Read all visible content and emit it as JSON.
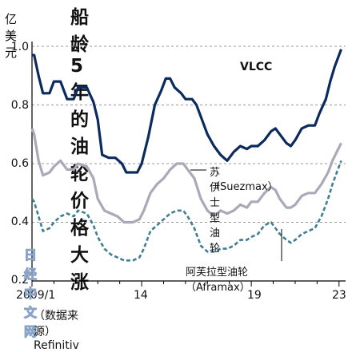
{
  "header": {
    "unit": "亿美元",
    "title": "船龄5年的油轮价格大涨"
  },
  "source": "（数据来源）Refinitiv",
  "watermark": "日经中文网",
  "colors": {
    "vlcc": "#0b2a5e",
    "suezmax": "#a9a9b8",
    "aframax": "#3f7f94"
  },
  "chart_data": {
    "type": "line",
    "title": "船龄5年的油轮价格大涨",
    "ylabel": "亿美元",
    "ylim": [
      0.2,
      1.0
    ],
    "xlim": [
      2009.0,
      2023.3
    ],
    "y_ticks": [
      "1.0",
      "0.8",
      "0.6",
      "0.4",
      "0.2"
    ],
    "x_ticks": [
      {
        "label": "2009/1",
        "x": 2009.0
      },
      {
        "label": "14",
        "x": 2014.0
      },
      {
        "label": "19",
        "x": 2019.0
      },
      {
        "label": "23",
        "x": 2023.0
      }
    ],
    "series": [
      {
        "name": "VLCC",
        "style": "solid",
        "points": [
          [
            2009.0,
            0.97
          ],
          [
            2009.1,
            0.97
          ],
          [
            2009.3,
            0.9
          ],
          [
            2009.5,
            0.84
          ],
          [
            2009.8,
            0.84
          ],
          [
            2010.0,
            0.88
          ],
          [
            2010.3,
            0.88
          ],
          [
            2010.6,
            0.82
          ],
          [
            2010.9,
            0.82
          ],
          [
            2011.1,
            0.86
          ],
          [
            2011.5,
            0.86
          ],
          [
            2011.8,
            0.81
          ],
          [
            2012.0,
            0.75
          ],
          [
            2012.2,
            0.63
          ],
          [
            2012.5,
            0.62
          ],
          [
            2012.8,
            0.62
          ],
          [
            2013.1,
            0.6
          ],
          [
            2013.3,
            0.57
          ],
          [
            2013.8,
            0.57
          ],
          [
            2014.0,
            0.6
          ],
          [
            2014.3,
            0.69
          ],
          [
            2014.6,
            0.8
          ],
          [
            2014.9,
            0.85
          ],
          [
            2015.1,
            0.89
          ],
          [
            2015.3,
            0.89
          ],
          [
            2015.5,
            0.86
          ],
          [
            2015.8,
            0.84
          ],
          [
            2016.0,
            0.82
          ],
          [
            2016.3,
            0.82
          ],
          [
            2016.5,
            0.8
          ],
          [
            2016.8,
            0.74
          ],
          [
            2017.0,
            0.7
          ],
          [
            2017.3,
            0.66
          ],
          [
            2017.6,
            0.63
          ],
          [
            2017.9,
            0.61
          ],
          [
            2018.2,
            0.64
          ],
          [
            2018.5,
            0.66
          ],
          [
            2018.8,
            0.65
          ],
          [
            2019.0,
            0.66
          ],
          [
            2019.3,
            0.66
          ],
          [
            2019.6,
            0.68
          ],
          [
            2019.9,
            0.71
          ],
          [
            2020.1,
            0.72
          ],
          [
            2020.3,
            0.7
          ],
          [
            2020.6,
            0.67
          ],
          [
            2020.8,
            0.66
          ],
          [
            2021.0,
            0.68
          ],
          [
            2021.3,
            0.72
          ],
          [
            2021.6,
            0.73
          ],
          [
            2021.9,
            0.73
          ],
          [
            2022.1,
            0.77
          ],
          [
            2022.4,
            0.82
          ],
          [
            2022.6,
            0.88
          ],
          [
            2022.8,
            0.93
          ],
          [
            2023.0,
            0.97
          ],
          [
            2023.1,
            0.99
          ]
        ]
      },
      {
        "name": "苏伊士型油轮（Suezmax）",
        "style": "solid",
        "points": [
          [
            2009.0,
            0.72
          ],
          [
            2009.1,
            0.7
          ],
          [
            2009.3,
            0.61
          ],
          [
            2009.5,
            0.56
          ],
          [
            2009.8,
            0.57
          ],
          [
            2010.0,
            0.59
          ],
          [
            2010.3,
            0.61
          ],
          [
            2010.6,
            0.58
          ],
          [
            2010.9,
            0.58
          ],
          [
            2011.1,
            0.6
          ],
          [
            2011.5,
            0.59
          ],
          [
            2011.8,
            0.55
          ],
          [
            2012.0,
            0.48
          ],
          [
            2012.3,
            0.44
          ],
          [
            2012.6,
            0.43
          ],
          [
            2012.9,
            0.42
          ],
          [
            2013.2,
            0.4
          ],
          [
            2013.6,
            0.4
          ],
          [
            2013.9,
            0.41
          ],
          [
            2014.1,
            0.44
          ],
          [
            2014.4,
            0.5
          ],
          [
            2014.7,
            0.53
          ],
          [
            2015.0,
            0.55
          ],
          [
            2015.3,
            0.58
          ],
          [
            2015.6,
            0.6
          ],
          [
            2015.9,
            0.6
          ],
          [
            2016.1,
            0.58
          ],
          [
            2016.4,
            0.55
          ],
          [
            2016.7,
            0.48
          ],
          [
            2017.0,
            0.44
          ],
          [
            2017.3,
            0.42
          ],
          [
            2017.6,
            0.44
          ],
          [
            2017.9,
            0.43
          ],
          [
            2018.2,
            0.44
          ],
          [
            2018.5,
            0.46
          ],
          [
            2018.8,
            0.45
          ],
          [
            2019.0,
            0.47
          ],
          [
            2019.3,
            0.47
          ],
          [
            2019.6,
            0.5
          ],
          [
            2019.9,
            0.52
          ],
          [
            2020.1,
            0.51
          ],
          [
            2020.3,
            0.48
          ],
          [
            2020.6,
            0.45
          ],
          [
            2020.8,
            0.45
          ],
          [
            2021.0,
            0.46
          ],
          [
            2021.3,
            0.49
          ],
          [
            2021.6,
            0.5
          ],
          [
            2021.9,
            0.5
          ],
          [
            2022.2,
            0.53
          ],
          [
            2022.5,
            0.57
          ],
          [
            2022.7,
            0.61
          ],
          [
            2022.9,
            0.64
          ],
          [
            2023.1,
            0.67
          ]
        ]
      },
      {
        "name": "阿芙拉型油轮（Aframax）",
        "style": "dashed",
        "points": [
          [
            2009.0,
            0.48
          ],
          [
            2009.1,
            0.47
          ],
          [
            2009.3,
            0.42
          ],
          [
            2009.5,
            0.37
          ],
          [
            2009.8,
            0.38
          ],
          [
            2010.0,
            0.4
          ],
          [
            2010.3,
            0.42
          ],
          [
            2010.6,
            0.43
          ],
          [
            2010.9,
            0.42
          ],
          [
            2011.1,
            0.44
          ],
          [
            2011.5,
            0.43
          ],
          [
            2011.8,
            0.39
          ],
          [
            2012.0,
            0.35
          ],
          [
            2012.3,
            0.31
          ],
          [
            2012.6,
            0.29
          ],
          [
            2012.9,
            0.28
          ],
          [
            2013.2,
            0.27
          ],
          [
            2013.6,
            0.27
          ],
          [
            2013.9,
            0.28
          ],
          [
            2014.1,
            0.31
          ],
          [
            2014.4,
            0.37
          ],
          [
            2014.7,
            0.39
          ],
          [
            2015.0,
            0.41
          ],
          [
            2015.3,
            0.43
          ],
          [
            2015.6,
            0.44
          ],
          [
            2015.9,
            0.44
          ],
          [
            2016.1,
            0.42
          ],
          [
            2016.4,
            0.38
          ],
          [
            2016.7,
            0.32
          ],
          [
            2017.0,
            0.3
          ],
          [
            2017.3,
            0.3
          ],
          [
            2017.6,
            0.31
          ],
          [
            2017.9,
            0.31
          ],
          [
            2018.2,
            0.32
          ],
          [
            2018.5,
            0.34
          ],
          [
            2018.8,
            0.34
          ],
          [
            2019.0,
            0.35
          ],
          [
            2019.3,
            0.36
          ],
          [
            2019.6,
            0.39
          ],
          [
            2019.9,
            0.4
          ],
          [
            2020.1,
            0.38
          ],
          [
            2020.3,
            0.36
          ],
          [
            2020.6,
            0.34
          ],
          [
            2020.8,
            0.33
          ],
          [
            2021.0,
            0.34
          ],
          [
            2021.3,
            0.36
          ],
          [
            2021.6,
            0.37
          ],
          [
            2021.9,
            0.38
          ],
          [
            2022.2,
            0.42
          ],
          [
            2022.5,
            0.48
          ],
          [
            2022.7,
            0.53
          ],
          [
            2022.9,
            0.57
          ],
          [
            2023.1,
            0.61
          ]
        ]
      }
    ],
    "annotations": {
      "vlcc": "VLCC",
      "suezmax_cn": "苏伊士型油轮",
      "suezmax_en": "（Suezmax）",
      "aframax": "阿芙拉型油轮（Aframax）"
    }
  }
}
